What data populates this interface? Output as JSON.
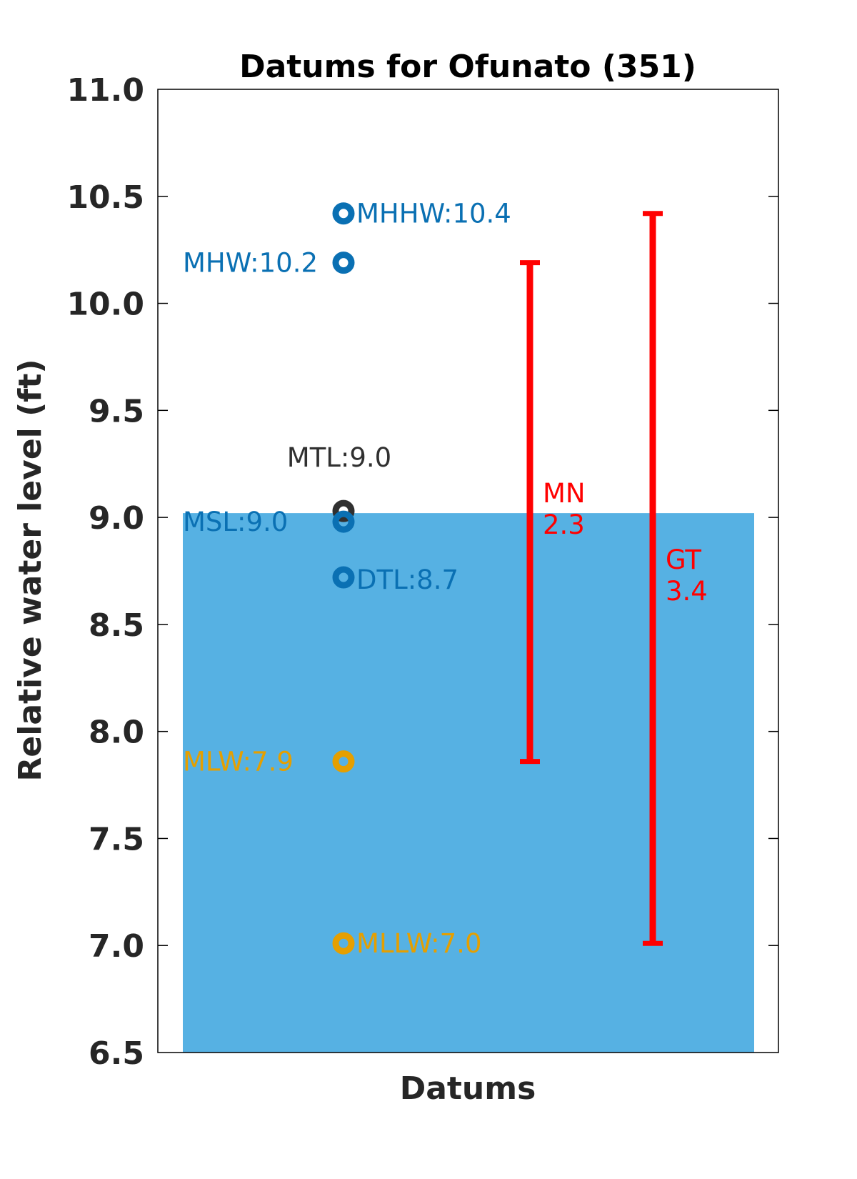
{
  "chart_data": {
    "type": "scatter",
    "title": "Datums for Ofunato (351)",
    "xlabel": "Datums",
    "ylabel": "Relative water level (ft)",
    "ylim": [
      6.5,
      11.0
    ],
    "yticks": [
      "6.5",
      "7.0",
      "7.5",
      "8.0",
      "8.5",
      "9.0",
      "9.5",
      "10.0",
      "10.5",
      "11.0"
    ],
    "grid": false,
    "water_fill": {
      "top": 9.02,
      "color": "#56B1E3"
    },
    "points": [
      {
        "name": "MHHW",
        "label": "MHHW:10.4",
        "y": 10.42,
        "color": "#0A70B3",
        "label_side": "right",
        "label_dy": 0
      },
      {
        "name": "MHW",
        "label": "MHW:10.2",
        "y": 10.19,
        "color": "#0A70B3",
        "label_side": "left",
        "label_dy": 0
      },
      {
        "name": "MTL",
        "label": "MTL:9.0",
        "y": 9.03,
        "color": "#303030",
        "label_side": "center",
        "label_dy": 0.25
      },
      {
        "name": "MSL",
        "label": "MSL:9.0",
        "y": 8.98,
        "color": "#0A70B3",
        "label_side": "left",
        "label_dy": 0
      },
      {
        "name": "DTL",
        "label": "DTL:8.7",
        "y": 8.72,
        "color": "#0A70B3",
        "label_side": "right",
        "label_dy": -0.01
      },
      {
        "name": "MLW",
        "label": "MLW:7.9",
        "y": 7.86,
        "color": "#E59F00",
        "label_side": "left",
        "label_dy": 0
      },
      {
        "name": "MLLW",
        "label": "MLLW:7.0",
        "y": 7.01,
        "color": "#E59F00",
        "label_side": "right",
        "label_dy": 0
      }
    ],
    "ranges": [
      {
        "name": "MN",
        "value": "2.3",
        "low": 7.86,
        "high": 10.19,
        "color": "#FF0000",
        "label_y": 9.07
      },
      {
        "name": "GT",
        "value": "3.4",
        "low": 7.01,
        "high": 10.42,
        "color": "#FF0000",
        "label_y": 8.76
      }
    ]
  }
}
